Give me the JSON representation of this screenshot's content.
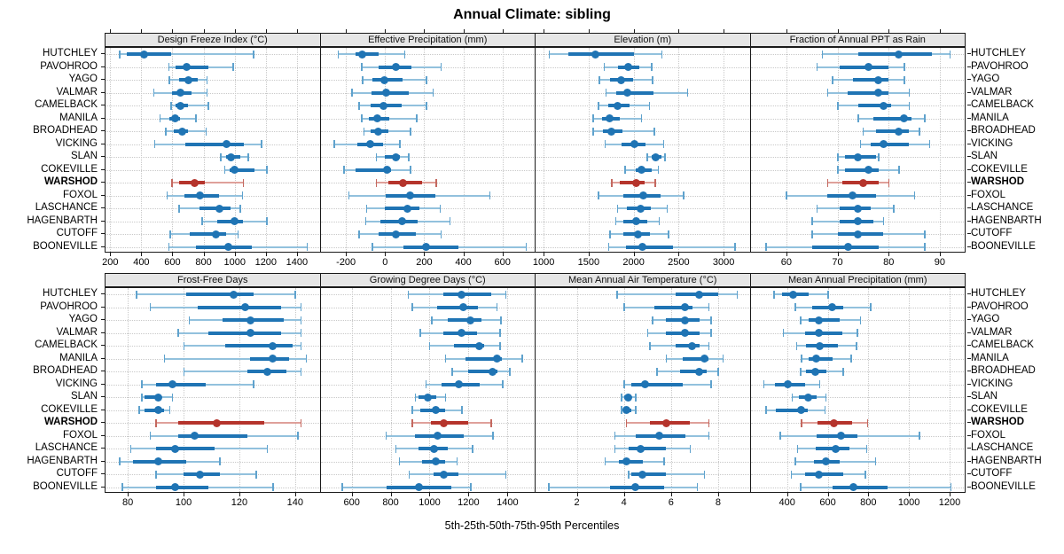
{
  "title": "Annual Climate: sibling",
  "caption": "5th-25th-50th-75th-95th Percentiles",
  "percentile_labels": [
    "5th",
    "25th",
    "50th",
    "75th",
    "95th"
  ],
  "sites": [
    "HUTCHLEY",
    "PAVOHROO",
    "YAGO",
    "VALMAR",
    "CAMELBACK",
    "MANILA",
    "BROADHEAD",
    "VICKING",
    "SLAN",
    "COKEVILLE",
    "WARSHOD",
    "FOXOL",
    "LASCHANCE",
    "HAGENBARTH",
    "CUTOFF",
    "BOONEVILLE"
  ],
  "highlighted_site": "WARSHOD",
  "colors": {
    "series": "#1f74b4",
    "series_light": "#92c1dd",
    "series_cap": "#5fa2cd",
    "highlight": "#b5342c",
    "highlight_light": "#dfa09a",
    "highlight_cap": "#c4685f",
    "strip_bg": "#e6e6e6",
    "grid": "#c9c9c9",
    "border": "#1a1a1a"
  },
  "chart_data": [
    {
      "type": "dotplot-interval",
      "row": 0,
      "col": 0,
      "title": "Design Freeze Index (°C)",
      "xlim": [
        170,
        1540
      ],
      "ticks": [
        200,
        400,
        600,
        800,
        1000,
        1200,
        1400
      ],
      "values": [
        [
          260,
          305,
          420,
          590,
          1120
        ],
        [
          575,
          620,
          690,
          830,
          990
        ],
        [
          580,
          640,
          700,
          760,
          820
        ],
        [
          480,
          600,
          650,
          720,
          820
        ],
        [
          590,
          620,
          650,
          700,
          830
        ],
        [
          520,
          580,
          615,
          650,
          750
        ],
        [
          555,
          610,
          660,
          700,
          815
        ],
        [
          485,
          680,
          950,
          1060,
          1170
        ],
        [
          910,
          945,
          975,
          1035,
          1085
        ],
        [
          935,
          965,
          1000,
          1125,
          1205
        ],
        [
          595,
          640,
          740,
          810,
          1055
        ],
        [
          565,
          675,
          775,
          900,
          1050
        ],
        [
          640,
          775,
          900,
          975,
          1035
        ],
        [
          790,
          885,
          1000,
          1055,
          1205
        ],
        [
          585,
          710,
          880,
          945,
          1020
        ],
        [
          575,
          750,
          960,
          1110,
          1465
        ]
      ]
    },
    {
      "type": "dotplot-interval",
      "row": 0,
      "col": 1,
      "title": "Effective Precipitation (mm)",
      "xlim": [
        -330,
        760
      ],
      "ticks": [
        -200,
        0,
        200,
        400,
        600
      ],
      "values": [
        [
          -240,
          -150,
          -115,
          -35,
          100
        ],
        [
          -120,
          -35,
          55,
          135,
          285
        ],
        [
          -115,
          -65,
          -5,
          90,
          210
        ],
        [
          -170,
          -70,
          5,
          120,
          245
        ],
        [
          -135,
          -75,
          -10,
          85,
          210
        ],
        [
          -120,
          -85,
          -40,
          20,
          160
        ],
        [
          -110,
          -75,
          -35,
          15,
          130
        ],
        [
          -260,
          -140,
          -75,
          -10,
          75
        ],
        [
          -45,
          0,
          55,
          75,
          120
        ],
        [
          -210,
          -150,
          10,
          30,
          130
        ],
        [
          -45,
          15,
          90,
          190,
          260
        ],
        [
          -185,
          5,
          130,
          255,
          535
        ],
        [
          -95,
          0,
          115,
          175,
          280
        ],
        [
          -100,
          -25,
          85,
          165,
          330
        ],
        [
          -135,
          -35,
          55,
          155,
          285
        ],
        [
          -65,
          95,
          210,
          375,
          720
        ]
      ]
    },
    {
      "type": "dotplot-interval",
      "row": 0,
      "col": 2,
      "title": "Elevation (m)",
      "xlim": [
        910,
        3280
      ],
      "ticks": [
        1000,
        1500,
        2000,
        2500,
        3000
      ],
      "values": [
        [
          1060,
          1270,
          1580,
          2000,
          2310
        ],
        [
          1670,
          1825,
          1940,
          2060,
          2200
        ],
        [
          1615,
          1740,
          1860,
          1990,
          2210
        ],
        [
          1690,
          1810,
          1930,
          2225,
          2600
        ],
        [
          1605,
          1720,
          1820,
          1955,
          2175
        ],
        [
          1550,
          1645,
          1735,
          1850,
          2085
        ],
        [
          1550,
          1655,
          1750,
          1875,
          2230
        ],
        [
          1680,
          1865,
          2005,
          2135,
          2330
        ],
        [
          2150,
          2200,
          2245,
          2305,
          2345
        ],
        [
          1905,
          2025,
          2090,
          2200,
          2270
        ],
        [
          1755,
          1850,
          2025,
          2125,
          2240
        ],
        [
          1605,
          1890,
          2110,
          2295,
          2555
        ],
        [
          1820,
          1925,
          2080,
          2190,
          2370
        ],
        [
          1800,
          1885,
          2025,
          2150,
          2280
        ],
        [
          1735,
          1885,
          2045,
          2180,
          2385
        ],
        [
          1720,
          1915,
          2095,
          2440,
          3125
        ]
      ]
    },
    {
      "type": "dotplot-interval",
      "row": 0,
      "col": 3,
      "title": "Fraction of Annual PPT as Rain",
      "xlim": [
        53,
        94.7
      ],
      "ticks": [
        60,
        70,
        80,
        90
      ],
      "values": [
        [
          67,
          74,
          82,
          88.5,
          92
        ],
        [
          66,
          70.5,
          76,
          80,
          83
        ],
        [
          69,
          73,
          78,
          80,
          83
        ],
        [
          68,
          72,
          78,
          80,
          84
        ],
        [
          70,
          74,
          79,
          80.5,
          84
        ],
        [
          74,
          77,
          83,
          84.5,
          87
        ],
        [
          75,
          77.5,
          82,
          84,
          86
        ],
        [
          74.5,
          76.5,
          79,
          84,
          88
        ],
        [
          70,
          71.5,
          74,
          77.5,
          78
        ],
        [
          70,
          71.5,
          76,
          78,
          82
        ],
        [
          68,
          71,
          75,
          78,
          80
        ],
        [
          60,
          68,
          73,
          77.5,
          85
        ],
        [
          66,
          70.5,
          74,
          76.5,
          81
        ],
        [
          65,
          70.5,
          74,
          77,
          79
        ],
        [
          65,
          70,
          74,
          79,
          87
        ],
        [
          56,
          65,
          72,
          78,
          87
        ]
      ]
    },
    {
      "type": "dotplot-interval",
      "row": 1,
      "col": 0,
      "title": "Frost-Free Days",
      "xlim": [
        72,
        148.5
      ],
      "ticks": [
        80,
        100,
        120,
        140
      ],
      "values": [
        [
          83,
          101,
          118,
          125,
          140
        ],
        [
          88,
          105,
          122,
          135,
          142
        ],
        [
          102,
          114,
          124,
          136,
          142
        ],
        [
          98,
          109,
          124,
          135,
          142
        ],
        [
          100,
          115,
          132,
          139,
          142
        ],
        [
          93,
          124,
          132,
          138,
          144
        ],
        [
          100,
          123,
          130,
          137,
          142
        ],
        [
          85,
          90,
          96,
          108,
          125
        ],
        [
          85,
          86,
          91,
          92,
          96
        ],
        [
          84,
          86,
          91,
          93,
          95
        ],
        [
          90,
          98,
          112,
          129,
          142
        ],
        [
          88,
          98,
          104,
          123,
          141
        ],
        [
          81,
          90,
          97,
          111,
          130
        ],
        [
          77,
          82,
          91,
          101,
          113
        ],
        [
          90,
          100,
          106,
          113,
          126
        ],
        [
          78,
          90,
          97,
          109,
          132
        ]
      ]
    },
    {
      "type": "dotplot-interval",
      "row": 1,
      "col": 1,
      "title": "Growing Degree Days (°C)",
      "xlim": [
        440,
        1535
      ],
      "ticks": [
        600,
        800,
        1000,
        1200,
        1400
      ],
      "values": [
        [
          890,
          1070,
          1165,
          1315,
          1390
        ],
        [
          910,
          1040,
          1175,
          1250,
          1345
        ],
        [
          1010,
          1095,
          1210,
          1265,
          1365
        ],
        [
          950,
          1070,
          1165,
          1245,
          1360
        ],
        [
          1000,
          1125,
          1255,
          1280,
          1360
        ],
        [
          1080,
          1185,
          1345,
          1370,
          1475
        ],
        [
          1115,
          1200,
          1325,
          1350,
          1410
        ],
        [
          980,
          1060,
          1150,
          1255,
          1375
        ],
        [
          925,
          945,
          990,
          1035,
          1080
        ],
        [
          910,
          950,
          1030,
          1080,
          1165
        ],
        [
          910,
          1005,
          1075,
          1200,
          1315
        ],
        [
          775,
          925,
          1040,
          1175,
          1325
        ],
        [
          825,
          945,
          1025,
          1095,
          1220
        ],
        [
          845,
          960,
          1030,
          1080,
          1140
        ],
        [
          895,
          1020,
          1075,
          1150,
          1390
        ],
        [
          550,
          780,
          945,
          1110,
          1210
        ]
      ]
    },
    {
      "type": "dotplot-interval",
      "row": 1,
      "col": 2,
      "title": "Mean Annual Air Temperature (°C)",
      "xlim": [
        0.25,
        9.3
      ],
      "ticks": [
        2,
        4,
        6,
        8
      ],
      "values": [
        [
          3.7,
          6.2,
          7.2,
          8.0,
          8.8
        ],
        [
          4.0,
          5.3,
          6.6,
          6.9,
          7.6
        ],
        [
          5.2,
          5.8,
          6.6,
          7.2,
          7.7
        ],
        [
          5.0,
          5.8,
          6.6,
          7.2,
          7.7
        ],
        [
          5.1,
          6.2,
          6.9,
          7.2,
          7.6
        ],
        [
          5.8,
          6.5,
          7.4,
          7.6,
          8.2
        ],
        [
          5.4,
          6.4,
          7.2,
          7.5,
          8.0
        ],
        [
          4.0,
          4.3,
          4.9,
          6.5,
          7.7
        ],
        [
          3.9,
          4.0,
          4.2,
          4.3,
          4.5
        ],
        [
          3.9,
          4.0,
          4.1,
          4.3,
          4.5
        ],
        [
          4.1,
          5.1,
          5.8,
          6.8,
          7.6
        ],
        [
          3.6,
          4.5,
          5.5,
          6.6,
          7.6
        ],
        [
          3.6,
          4.2,
          4.7,
          5.8,
          6.8
        ],
        [
          3.2,
          3.8,
          4.1,
          4.8,
          5.7
        ],
        [
          4.2,
          4.3,
          4.8,
          5.8,
          7.4
        ],
        [
          0.8,
          3.4,
          4.5,
          5.7,
          7.1
        ]
      ]
    },
    {
      "type": "dotplot-interval",
      "row": 1,
      "col": 3,
      "title": "Mean Annual Precipitation (mm)",
      "xlim": [
        220,
        1270
      ],
      "ticks": [
        400,
        600,
        800,
        1000,
        1200
      ],
      "values": [
        [
          335,
          375,
          430,
          505,
          600
        ],
        [
          440,
          525,
          620,
          675,
          810
        ],
        [
          465,
          505,
          555,
          660,
          760
        ],
        [
          380,
          490,
          555,
          670,
          745
        ],
        [
          445,
          495,
          560,
          650,
          740
        ],
        [
          470,
          505,
          545,
          625,
          715
        ],
        [
          465,
          495,
          540,
          595,
          675
        ],
        [
          285,
          340,
          405,
          490,
          560
        ],
        [
          425,
          460,
          505,
          545,
          590
        ],
        [
          295,
          345,
          470,
          500,
          585
        ],
        [
          470,
          550,
          630,
          720,
          795
        ],
        [
          365,
          545,
          665,
          745,
          1050
        ],
        [
          450,
          540,
          640,
          705,
          790
        ],
        [
          440,
          530,
          590,
          660,
          835
        ],
        [
          420,
          490,
          555,
          675,
          785
        ],
        [
          465,
          625,
          725,
          895,
          1205
        ]
      ]
    }
  ]
}
